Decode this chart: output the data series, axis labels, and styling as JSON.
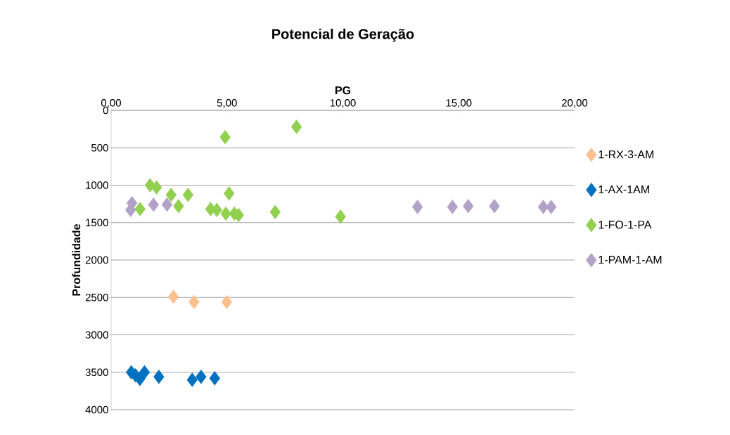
{
  "chart_data": {
    "type": "scatter",
    "title": "Potencial de Geração",
    "xlabel": "PG",
    "ylabel": "Profundidade",
    "xlim": [
      0,
      20
    ],
    "xticks": [
      {
        "value": 0,
        "label": "0,00"
      },
      {
        "value": 5,
        "label": "5,00"
      },
      {
        "value": 10,
        "label": "10,00"
      },
      {
        "value": 15,
        "label": "15,00"
      },
      {
        "value": 20,
        "label": "20,00"
      }
    ],
    "ylim": [
      4000,
      0
    ],
    "yticks": [
      0,
      500,
      1000,
      1500,
      2000,
      2500,
      3000,
      3500,
      4000
    ],
    "grid": "y",
    "legend": "right",
    "marker": "diamond",
    "series": [
      {
        "name": "1-RX-3-AM",
        "color": "#fac090",
        "x": [
          2.69,
          3.58,
          4.99
        ],
        "values": [
          2490,
          2560,
          2560
        ]
      },
      {
        "name": "1-AX-1AM",
        "color": "#0070c0",
        "x": [
          0.87,
          1.05,
          1.24,
          1.44,
          2.06,
          3.5,
          3.88,
          4.47
        ],
        "values": [
          3500,
          3540,
          3590,
          3500,
          3560,
          3600,
          3560,
          3580
        ]
      },
      {
        "name": "1-FO-1-PA",
        "color": "#92d050",
        "x": [
          4.92,
          8.0,
          1.68,
          1.96,
          2.59,
          3.32,
          5.09,
          1.25,
          2.91,
          4.29,
          4.56,
          4.95,
          5.32,
          5.5,
          7.08,
          9.9
        ],
        "values": [
          360,
          220,
          1000,
          1030,
          1130,
          1130,
          1110,
          1320,
          1280,
          1320,
          1330,
          1380,
          1380,
          1400,
          1360,
          1420
        ]
      },
      {
        "name": "1-PAM-1-AM",
        "color": "#b3a2c7",
        "x": [
          0.9,
          0.84,
          1.83,
          2.41,
          13.22,
          14.73,
          15.41,
          16.54,
          18.65,
          18.99
        ],
        "values": [
          1240,
          1330,
          1260,
          1260,
          1290,
          1290,
          1280,
          1280,
          1290,
          1290
        ]
      }
    ]
  }
}
